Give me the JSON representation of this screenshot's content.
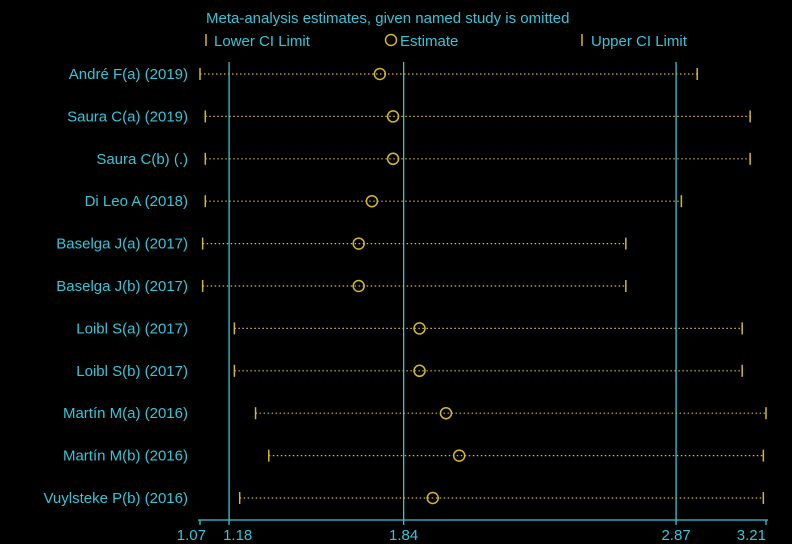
{
  "chart_data": {
    "type": "forest",
    "title": "Meta-analysis estimates, given named study is omitted",
    "legend": {
      "lower": "Lower CI Limit",
      "estimate": "Estimate",
      "upper": "Upper CI Limit",
      "placement": "top"
    },
    "x_ticks": [
      "1.07",
      "1.18",
      "1.84",
      "2.87",
      "3.21"
    ],
    "x_tick_values": [
      1.07,
      1.18,
      1.84,
      2.87,
      3.21
    ],
    "reference_lines": [
      1.18,
      1.84,
      2.87
    ],
    "xlim": [
      1.07,
      3.21
    ],
    "studies": [
      {
        "name": "André F(a) (2019)",
        "lower": 1.07,
        "estimate": 1.75,
        "upper": 2.95
      },
      {
        "name": "Saura C(a) (2019)",
        "lower": 1.09,
        "estimate": 1.8,
        "upper": 3.15
      },
      {
        "name": "Saura C(b) (.)",
        "lower": 1.09,
        "estimate": 1.8,
        "upper": 3.15
      },
      {
        "name": "Di Leo A (2018)",
        "lower": 1.09,
        "estimate": 1.72,
        "upper": 2.89
      },
      {
        "name": "Baselga J(a) (2017)",
        "lower": 1.08,
        "estimate": 1.67,
        "upper": 2.68
      },
      {
        "name": "Baselga J(b) (2017)",
        "lower": 1.08,
        "estimate": 1.67,
        "upper": 2.68
      },
      {
        "name": "Loibl S(a) (2017)",
        "lower": 1.2,
        "estimate": 1.9,
        "upper": 3.12
      },
      {
        "name": "Loibl S(b) (2017)",
        "lower": 1.2,
        "estimate": 1.9,
        "upper": 3.12
      },
      {
        "name": "Martín M(a) (2016)",
        "lower": 1.28,
        "estimate": 2.0,
        "upper": 3.21
      },
      {
        "name": "Martín M(b) (2016)",
        "lower": 1.33,
        "estimate": 2.05,
        "upper": 3.2
      },
      {
        "name": "Vuylsteke P(b) (2016)",
        "lower": 1.22,
        "estimate": 1.95,
        "upper": 3.2
      }
    ],
    "colors": {
      "text": "#34c6d8",
      "axis": "#34c6d8",
      "marker": "#d4b82a",
      "ci_line": "#d4b82a",
      "background": "#000000"
    }
  }
}
